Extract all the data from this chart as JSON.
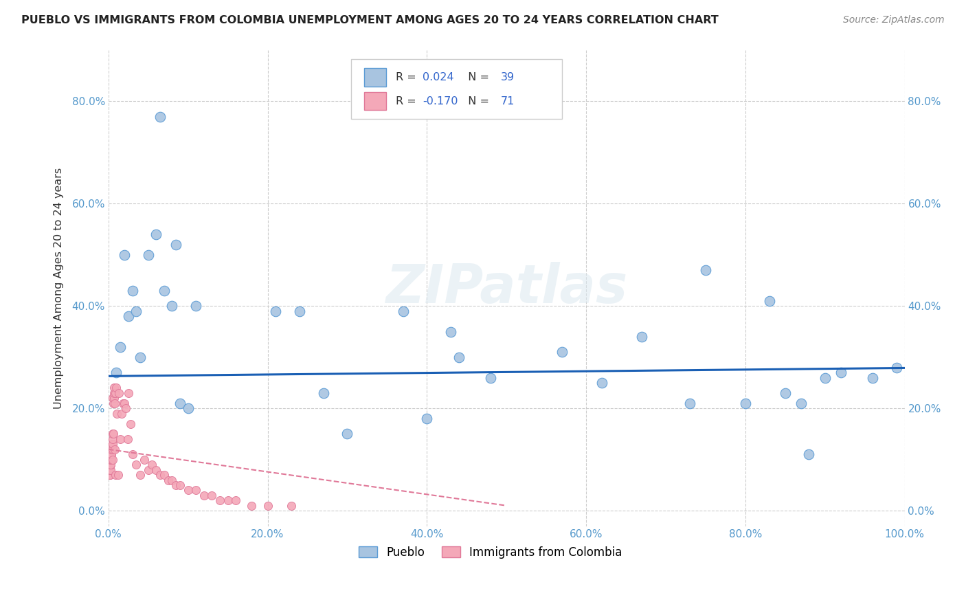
{
  "title": "PUEBLO VS IMMIGRANTS FROM COLOMBIA UNEMPLOYMENT AMONG AGES 20 TO 24 YEARS CORRELATION CHART",
  "source": "Source: ZipAtlas.com",
  "ylabel": "Unemployment Among Ages 20 to 24 years",
  "xlim": [
    0.0,
    1.0
  ],
  "ylim": [
    -0.03,
    0.9
  ],
  "xticks": [
    0.0,
    0.2,
    0.4,
    0.6,
    0.8,
    1.0
  ],
  "yticks": [
    0.0,
    0.2,
    0.4,
    0.6,
    0.8
  ],
  "xticklabels": [
    "0.0%",
    "20.0%",
    "40.0%",
    "60.0%",
    "80.0%",
    "100.0%"
  ],
  "yticklabels": [
    "0.0%",
    "20.0%",
    "40.0%",
    "60.0%",
    "80.0%"
  ],
  "right_yticklabels": [
    "0.0%",
    "20.0%",
    "40.0%",
    "60.0%",
    "80.0%"
  ],
  "pueblo_R": 0.024,
  "pueblo_N": 39,
  "colombia_R": -0.17,
  "colombia_N": 71,
  "pueblo_color": "#a8c4e0",
  "colombia_color": "#f4a8b8",
  "pueblo_edge_color": "#5b9bd5",
  "colombia_edge_color": "#e07898",
  "pueblo_line_color": "#1a5fb4",
  "colombia_line_color": "#e07898",
  "watermark": "ZIPatlas",
  "pueblo_x": [
    0.01,
    0.015,
    0.02,
    0.025,
    0.03,
    0.035,
    0.04,
    0.05,
    0.06,
    0.065,
    0.07,
    0.08,
    0.085,
    0.09,
    0.1,
    0.11,
    0.21,
    0.24,
    0.27,
    0.3,
    0.37,
    0.4,
    0.43,
    0.44,
    0.48,
    0.57,
    0.62,
    0.67,
    0.73,
    0.75,
    0.8,
    0.83,
    0.85,
    0.87,
    0.88,
    0.9,
    0.92,
    0.96,
    0.99
  ],
  "pueblo_y": [
    0.27,
    0.32,
    0.5,
    0.38,
    0.43,
    0.39,
    0.3,
    0.5,
    0.54,
    0.77,
    0.43,
    0.4,
    0.52,
    0.21,
    0.2,
    0.4,
    0.39,
    0.39,
    0.23,
    0.15,
    0.39,
    0.18,
    0.35,
    0.3,
    0.26,
    0.31,
    0.25,
    0.34,
    0.21,
    0.47,
    0.21,
    0.41,
    0.23,
    0.21,
    0.11,
    0.26,
    0.27,
    0.26,
    0.28
  ],
  "colombia_x": [
    0.001,
    0.001,
    0.001,
    0.002,
    0.002,
    0.002,
    0.002,
    0.002,
    0.003,
    0.003,
    0.003,
    0.003,
    0.003,
    0.003,
    0.004,
    0.004,
    0.004,
    0.004,
    0.004,
    0.004,
    0.005,
    0.005,
    0.005,
    0.005,
    0.005,
    0.005,
    0.005,
    0.006,
    0.006,
    0.007,
    0.007,
    0.007,
    0.008,
    0.008,
    0.009,
    0.009,
    0.01,
    0.011,
    0.012,
    0.013,
    0.015,
    0.017,
    0.018,
    0.02,
    0.022,
    0.024,
    0.025,
    0.028,
    0.03,
    0.035,
    0.04,
    0.045,
    0.05,
    0.055,
    0.06,
    0.065,
    0.07,
    0.075,
    0.08,
    0.085,
    0.09,
    0.1,
    0.11,
    0.12,
    0.13,
    0.14,
    0.15,
    0.16,
    0.18,
    0.2,
    0.23
  ],
  "colombia_y": [
    0.07,
    0.07,
    0.08,
    0.07,
    0.07,
    0.08,
    0.08,
    0.08,
    0.08,
    0.09,
    0.09,
    0.09,
    0.1,
    0.1,
    0.1,
    0.1,
    0.11,
    0.11,
    0.11,
    0.12,
    0.1,
    0.12,
    0.13,
    0.13,
    0.14,
    0.15,
    0.22,
    0.15,
    0.21,
    0.22,
    0.23,
    0.24,
    0.21,
    0.12,
    0.07,
    0.23,
    0.24,
    0.19,
    0.07,
    0.23,
    0.14,
    0.19,
    0.21,
    0.21,
    0.2,
    0.14,
    0.23,
    0.17,
    0.11,
    0.09,
    0.07,
    0.1,
    0.08,
    0.09,
    0.08,
    0.07,
    0.07,
    0.06,
    0.06,
    0.05,
    0.05,
    0.04,
    0.04,
    0.03,
    0.03,
    0.02,
    0.02,
    0.02,
    0.01,
    0.01,
    0.01
  ],
  "pueblo_trend_x": [
    0.0,
    1.0
  ],
  "pueblo_trend_y": [
    0.263,
    0.279
  ],
  "colombia_trend_x": [
    0.0,
    0.5
  ],
  "colombia_trend_y": [
    0.12,
    0.01
  ]
}
